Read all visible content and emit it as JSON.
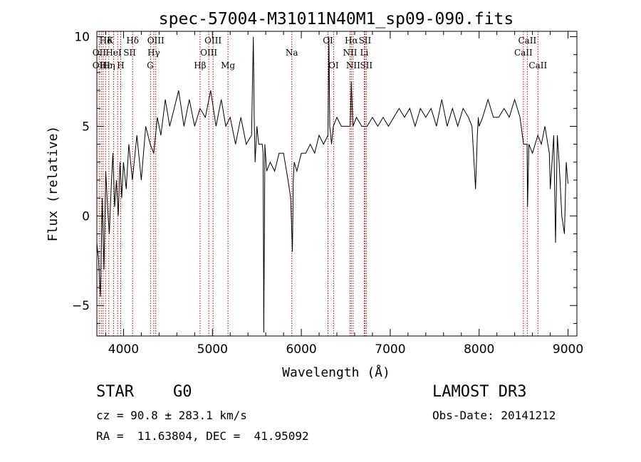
{
  "chart_data": {
    "type": "line",
    "title": "spec-57004-M31011N40M1_sp09-090.fits",
    "xlabel": "Wavelength (Å)",
    "ylabel": "Flux (relative)",
    "xlim": [
      3700,
      9100
    ],
    "ylim": [
      -6.7,
      10.3
    ],
    "xticks": [
      4000,
      5000,
      6000,
      7000,
      8000,
      9000
    ],
    "xtick_labels": [
      "4000",
      "5000",
      "6000",
      "7000",
      "8000",
      "9000"
    ],
    "yticks": [
      -5,
      0,
      5,
      10
    ],
    "ytick_labels": [
      "−5",
      "0",
      "5",
      "10"
    ],
    "series": [
      {
        "name": "spectrum",
        "x": [
          3700,
          3720,
          3740,
          3760,
          3780,
          3800,
          3820,
          3840,
          3860,
          3880,
          3900,
          3920,
          3940,
          3960,
          3980,
          4000,
          4030,
          4060,
          4100,
          4150,
          4200,
          4250,
          4300,
          4340,
          4380,
          4420,
          4470,
          4520,
          4570,
          4620,
          4680,
          4740,
          4800,
          4860,
          4920,
          4980,
          5040,
          5100,
          5150,
          5200,
          5260,
          5320,
          5380,
          5440,
          5460,
          5470,
          5480,
          5500,
          5520,
          5560,
          5570,
          5578,
          5590,
          5610,
          5650,
          5700,
          5750,
          5800,
          5850,
          5880,
          5900,
          5910,
          5920,
          5950,
          6000,
          6050,
          6100,
          6150,
          6200,
          6250,
          6300,
          6310,
          6320,
          6340,
          6360,
          6400,
          6450,
          6500,
          6550,
          6563,
          6580,
          6620,
          6680,
          6740,
          6800,
          6860,
          6920,
          6980,
          7040,
          7100,
          7160,
          7220,
          7280,
          7340,
          7400,
          7460,
          7520,
          7580,
          7640,
          7700,
          7760,
          7820,
          7880,
          7920,
          7960,
          7980,
          7990,
          8000,
          8040,
          8100,
          8160,
          8220,
          8280,
          8340,
          8400,
          8460,
          8500,
          8540,
          8545,
          8560,
          8600,
          8660,
          8700,
          8740,
          8790,
          8800,
          8820,
          8840,
          8860,
          8880,
          8900,
          8930,
          8960,
          8980,
          9000
        ],
        "y": [
          -1.5,
          -2.5,
          -4.5,
          1.0,
          -3.0,
          2.5,
          0.5,
          -1.0,
          1.5,
          3.5,
          0.5,
          2.0,
          0.0,
          3.0,
          1.0,
          3.0,
          1.5,
          4.0,
          2.0,
          4.5,
          2.0,
          5.0,
          4.0,
          3.5,
          5.5,
          4.5,
          6.5,
          5.0,
          6.0,
          7.0,
          5.0,
          6.5,
          5.0,
          6.0,
          5.5,
          7.0,
          5.0,
          6.5,
          5.0,
          5.5,
          4.0,
          5.5,
          4.0,
          4.5,
          10.0,
          5.5,
          3.0,
          5.0,
          4.0,
          4.0,
          3.5,
          -6.5,
          4.0,
          2.5,
          3.0,
          2.5,
          3.5,
          3.5,
          2.0,
          1.0,
          -2.0,
          2.0,
          3.0,
          2.5,
          3.5,
          3.5,
          4.0,
          3.5,
          4.5,
          4.0,
          4.5,
          10.0,
          5.0,
          4.0,
          5.0,
          5.5,
          5.0,
          5.0,
          5.0,
          7.5,
          5.0,
          5.5,
          5.0,
          5.0,
          5.5,
          5.0,
          5.5,
          5.0,
          5.5,
          6.0,
          5.5,
          6.0,
          5.0,
          6.0,
          5.5,
          6.0,
          5.0,
          6.5,
          5.0,
          6.0,
          5.0,
          6.0,
          5.5,
          5.0,
          1.5,
          4.5,
          5.5,
          5.0,
          5.5,
          6.5,
          5.5,
          5.5,
          6.0,
          5.5,
          6.5,
          5.5,
          4.0,
          4.0,
          0.5,
          4.0,
          3.5,
          4.5,
          4.0,
          5.0,
          3.5,
          1.5,
          3.0,
          4.5,
          -1.5,
          4.5,
          3.0,
          0.0,
          -1.0,
          3.0,
          1.8
        ]
      }
    ],
    "annotations": [
      {
        "label": "Hδ",
        "x": 3800,
        "row": 1
      },
      {
        "label": "K",
        "x": 3850,
        "row": 1
      },
      {
        "label": "Hδ",
        "x": 4102,
        "row": 1
      },
      {
        "label": "OIII",
        "x": 4363,
        "row": 1
      },
      {
        "label": "OIII",
        "x": 5007,
        "row": 1
      },
      {
        "label": "OI",
        "x": 6300,
        "row": 1
      },
      {
        "label": "Hα",
        "x": 6563,
        "row": 1
      },
      {
        "label": "SII",
        "x": 6716,
        "row": 1
      },
      {
        "label": "CaII",
        "x": 8542,
        "row": 1
      },
      {
        "label": "OII",
        "x": 3727,
        "row": 2
      },
      {
        "label": "HeI",
        "x": 3889,
        "row": 2
      },
      {
        "label": "SII",
        "x": 4069,
        "row": 2
      },
      {
        "label": "Hγ",
        "x": 4340,
        "row": 2
      },
      {
        "label": "OIII",
        "x": 4959,
        "row": 2
      },
      {
        "label": "Na",
        "x": 5893,
        "row": 2
      },
      {
        "label": "NII",
        "x": 6548,
        "row": 2
      },
      {
        "label": "Li",
        "x": 6708,
        "row": 2
      },
      {
        "label": "CaII",
        "x": 8498,
        "row": 2
      },
      {
        "label": "OII",
        "x": 3727,
        "row": 3
      },
      {
        "label": "Hε",
        "x": 3800,
        "row": 3
      },
      {
        "label": "Hη",
        "x": 3835,
        "row": 3
      },
      {
        "label": "H",
        "x": 3968,
        "row": 3
      },
      {
        "label": "G",
        "x": 4300,
        "row": 3
      },
      {
        "label": "Hβ",
        "x": 4861,
        "row": 3
      },
      {
        "label": "Mg",
        "x": 5175,
        "row": 3
      },
      {
        "label": "OI",
        "x": 6363,
        "row": 3
      },
      {
        "label": "NII",
        "x": 6583,
        "row": 3
      },
      {
        "label": "SII",
        "x": 6731,
        "row": 3
      },
      {
        "label": "CaII",
        "x": 8662,
        "row": 3
      }
    ],
    "line_markers": [
      3727,
      3750,
      3771,
      3798,
      3835,
      3889,
      3934,
      3968,
      4102,
      4304,
      4340,
      4363,
      4861,
      4959,
      5007,
      5175,
      5893,
      6300,
      6363,
      6548,
      6563,
      6583,
      6708,
      6716,
      6731,
      8498,
      8542,
      8662
    ]
  },
  "info": {
    "class": "STAR",
    "subclass": "G0",
    "survey": "LAMOST DR3",
    "redshift": "cz = 90.8 ± 283.1 km/s",
    "obs_date": "Obs-Date: 20141212",
    "coords": "RA =  11.63804, DEC =  41.95092"
  }
}
